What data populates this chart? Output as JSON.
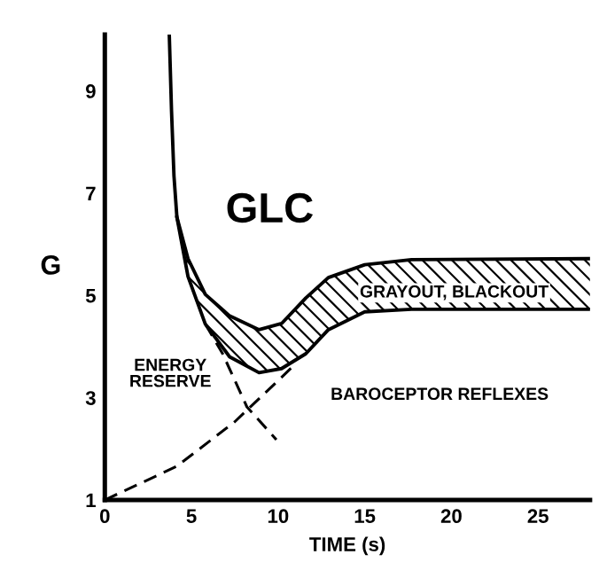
{
  "chart_data": {
    "type": "line",
    "xlabel": "TIME (s)",
    "ylabel": "G",
    "xlim": [
      0,
      28
    ],
    "ylim": [
      1,
      10.1
    ],
    "xticks": [
      0,
      5,
      10,
      15,
      20,
      25
    ],
    "yticks": [
      1,
      3,
      5,
      7,
      9
    ],
    "grid": false,
    "legend": false,
    "marker": "none",
    "series": [
      {
        "color": "#000000",
        "line_style": "solid",
        "x": [
          3.72,
          3.85,
          3.99,
          4.16,
          4.8,
          5.8,
          7.2,
          8.9,
          10.2,
          11.6,
          12.9,
          15,
          17.7,
          28
        ],
        "values": [
          10.1,
          8.6,
          7.34,
          6.53,
          5.72,
          5.02,
          4.6,
          4.33,
          4.45,
          4.95,
          5.35,
          5.6,
          5.7,
          5.72
        ]
      },
      {
        "color": "#000000",
        "line_style": "solid",
        "x": [
          4.16,
          4.8,
          5.8,
          7.2,
          8.9,
          10.2,
          11.6,
          12.9,
          15,
          17.7,
          28
        ],
        "values": [
          6.53,
          5.37,
          4.44,
          3.8,
          3.49,
          3.57,
          3.86,
          4.33,
          4.68,
          4.73,
          4.73
        ]
      },
      {
        "color": "#000000",
        "line_style": "dashed",
        "x": [
          5.8,
          6.8,
          8.2,
          9.9
        ],
        "values": [
          4.44,
          3.86,
          2.82,
          2.18
        ]
      },
      {
        "color": "#000000",
        "line_style": "dashed",
        "x": [
          0,
          4.16,
          7.5,
          10.2,
          10.9
        ],
        "values": [
          1,
          1.66,
          2.53,
          3.4,
          3.63
        ]
      }
    ],
    "annotations": [
      "GLC",
      "GRAYOUT, BLACKOUT",
      "ENERGY\nRESERVE",
      "BAROCEPTOR REFLEXES"
    ]
  }
}
